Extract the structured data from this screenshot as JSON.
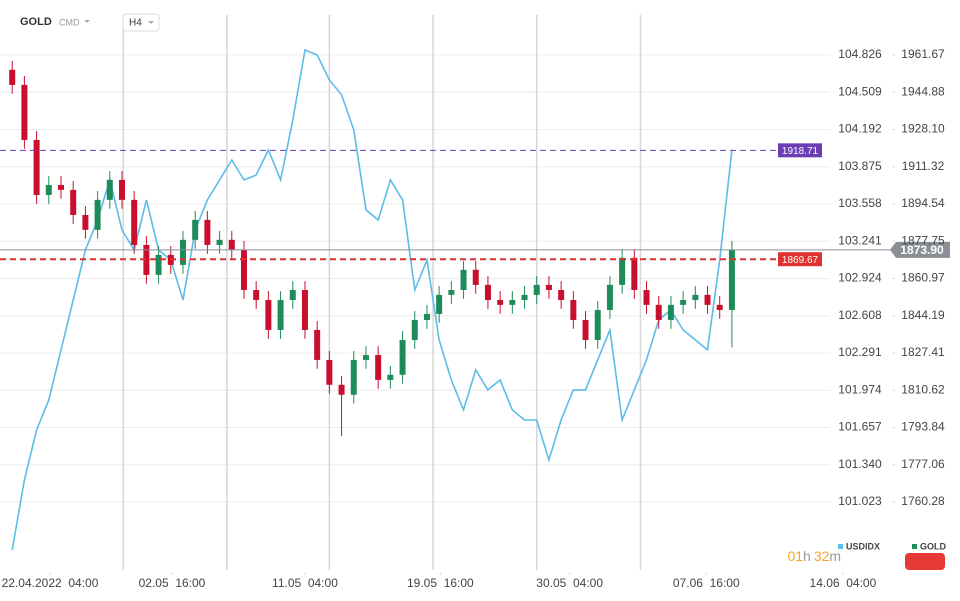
{
  "chart_data": {
    "type": "candlestick",
    "symbol": "GOLD",
    "market": "CMD",
    "timeframe": "H4",
    "timer": [
      "01",
      "h",
      "32",
      "m"
    ],
    "xlim": [
      -1,
      69.5
    ],
    "xticks": [
      {
        "value": 3.1,
        "label": "22.04.2022  04:00"
      },
      {
        "value": 13.1,
        "label": "02.05  16:00"
      },
      {
        "value": 24,
        "label": "11.05  04:00"
      },
      {
        "value": 35.1,
        "label": "19.05  16:00"
      },
      {
        "value": 45.7,
        "label": "30.05  04:00"
      },
      {
        "value": 56.9,
        "label": "07.06  16:00"
      },
      {
        "value": 68.1,
        "label": "14.06  04:00"
      }
    ],
    "xgrid": [
      9.1,
      17.6,
      26,
      34.5,
      43,
      51.5
    ],
    "ylim": [
      100.445,
      105.166
    ],
    "yticks": [
      104.826,
      104.509,
      104.192,
      103.875,
      103.558,
      103.241,
      102.924,
      102.608,
      102.291,
      101.974,
      101.657,
      {
        "value": 101.34,
        "label": "101.340"
      },
      101.023
    ],
    "y2lim": [
      1729.66,
      1979.68
    ],
    "y2ticks": [
      1961.67,
      1944.88,
      {
        "value": 1928.1,
        "label": "1928.10"
      },
      1911.32,
      1894.54,
      1877.75,
      1860.97,
      1844.19,
      1827.41,
      1810.62,
      1793.84,
      1777.06,
      1760.28
    ],
    "grid": true,
    "series": [
      {
        "name": "USDIDX",
        "color": "#5bbde8",
        "axis": "y",
        "values": [
          100.616,
          101.211,
          101.636,
          101.892,
          102.317,
          102.742,
          103.167,
          103.422,
          103.763,
          103.337,
          103.167,
          103.593,
          103.167,
          103.082,
          102.742,
          103.337,
          103.593,
          103.763,
          103.933,
          103.763,
          103.805,
          104.018,
          103.763,
          104.273,
          104.868,
          104.826,
          104.613,
          104.486,
          104.188,
          103.508,
          103.422,
          103.763,
          103.593,
          102.827,
          103.082,
          102.402,
          102.062,
          101.807,
          102.147,
          101.977,
          102.062,
          101.807,
          101.721,
          101.721,
          101.381,
          101.721,
          101.977,
          101.977,
          102.232,
          102.487,
          101.721,
          101.977,
          102.232,
          102.572,
          102.657,
          102.487,
          102.402,
          102.317,
          103.082,
          104.018
        ]
      },
      {
        "name": "GOLD",
        "color": "#1e8c5a",
        "down_color": "#c8102e",
        "axis": "y2",
        "open": [
          1955.0,
          1948.2,
          1923.4,
          1898.6,
          1903.1,
          1900.9,
          1889.6,
          1882.9,
          1896.4,
          1905.4,
          1896.4,
          1876.1,
          1862.6,
          1871.6,
          1867.1,
          1878.4,
          1887.4,
          1876.1,
          1878.4,
          1873.9,
          1855.8,
          1851.3,
          1837.8,
          1851.3,
          1855.8,
          1837.8,
          1824.3,
          1813.1,
          1808.6,
          1824.3,
          1826.5,
          1815.3,
          1817.6,
          1833.3,
          1842.3,
          1845.0,
          1853.6,
          1855.8,
          1864.9,
          1858.1,
          1851.3,
          1849.1,
          1851.3,
          1853.6,
          1858.1,
          1855.8,
          1851.3,
          1842.3,
          1833.3,
          1846.8,
          1858.1,
          1870.3,
          1855.8,
          1849.1,
          1842.3,
          1849.1,
          1851.3,
          1853.6,
          1849.1,
          1846.8
        ],
        "high": [
          1959.0,
          1952.2,
          1927.4,
          1907.1,
          1907.1,
          1904.9,
          1893.6,
          1900.4,
          1909.4,
          1909.4,
          1900.4,
          1880.1,
          1875.6,
          1875.6,
          1882.4,
          1891.4,
          1891.4,
          1882.4,
          1882.4,
          1877.9,
          1859.8,
          1855.3,
          1855.3,
          1859.8,
          1859.8,
          1841.8,
          1828.3,
          1817.1,
          1828.3,
          1830.5,
          1830.5,
          1821.6,
          1837.3,
          1846.3,
          1849.0,
          1857.6,
          1859.8,
          1868.9,
          1868.9,
          1862.1,
          1855.3,
          1855.3,
          1857.6,
          1862.1,
          1862.1,
          1859.8,
          1855.3,
          1846.3,
          1850.8,
          1862.1,
          1874.3,
          1874.3,
          1859.8,
          1853.1,
          1853.1,
          1855.3,
          1857.6,
          1857.6,
          1853.1,
          1877.9
        ],
        "low": [
          1944.2,
          1919.4,
          1894.6,
          1894.6,
          1896.9,
          1885.6,
          1878.9,
          1878.9,
          1892.4,
          1892.4,
          1872.1,
          1858.6,
          1858.6,
          1863.1,
          1863.1,
          1874.4,
          1872.1,
          1872.1,
          1869.9,
          1851.8,
          1847.3,
          1833.8,
          1833.8,
          1847.3,
          1833.8,
          1820.3,
          1809.1,
          1790.0,
          1804.6,
          1820.3,
          1811.3,
          1811.3,
          1813.6,
          1829.3,
          1838.3,
          1841.0,
          1849.6,
          1851.8,
          1854.1,
          1847.3,
          1845.1,
          1845.1,
          1847.3,
          1849.6,
          1851.8,
          1847.3,
          1838.3,
          1829.3,
          1829.3,
          1842.8,
          1854.1,
          1851.8,
          1845.1,
          1838.3,
          1838.3,
          1845.1,
          1847.3,
          1845.1,
          1842.8,
          1830.0
        ],
        "close": [
          1948.2,
          1923.4,
          1898.6,
          1903.1,
          1900.9,
          1889.6,
          1882.9,
          1896.4,
          1905.4,
          1896.4,
          1876.1,
          1862.6,
          1871.6,
          1867.1,
          1878.4,
          1887.4,
          1876.1,
          1878.4,
          1873.9,
          1855.8,
          1851.3,
          1837.8,
          1851.3,
          1855.8,
          1837.8,
          1824.3,
          1813.1,
          1808.6,
          1824.3,
          1826.5,
          1815.3,
          1817.6,
          1833.3,
          1842.3,
          1845.0,
          1853.6,
          1855.8,
          1864.9,
          1858.1,
          1851.3,
          1849.1,
          1851.3,
          1853.6,
          1858.1,
          1855.8,
          1851.3,
          1842.3,
          1833.3,
          1846.8,
          1858.1,
          1870.3,
          1855.8,
          1849.1,
          1842.3,
          1849.1,
          1851.3,
          1853.6,
          1849.1,
          1846.8,
          1873.9
        ]
      }
    ],
    "price_lines": [
      {
        "value": 1918.71,
        "label": "1918.71",
        "color": "#6a3fb5",
        "style": "dashed"
      },
      {
        "value": 1869.67,
        "label": "1869.67",
        "color": "#e03131",
        "style": "dashed"
      },
      {
        "value": 1873.9,
        "label": "1873.90",
        "color": "#8a8f96",
        "style": "solid",
        "current": true
      }
    ]
  }
}
